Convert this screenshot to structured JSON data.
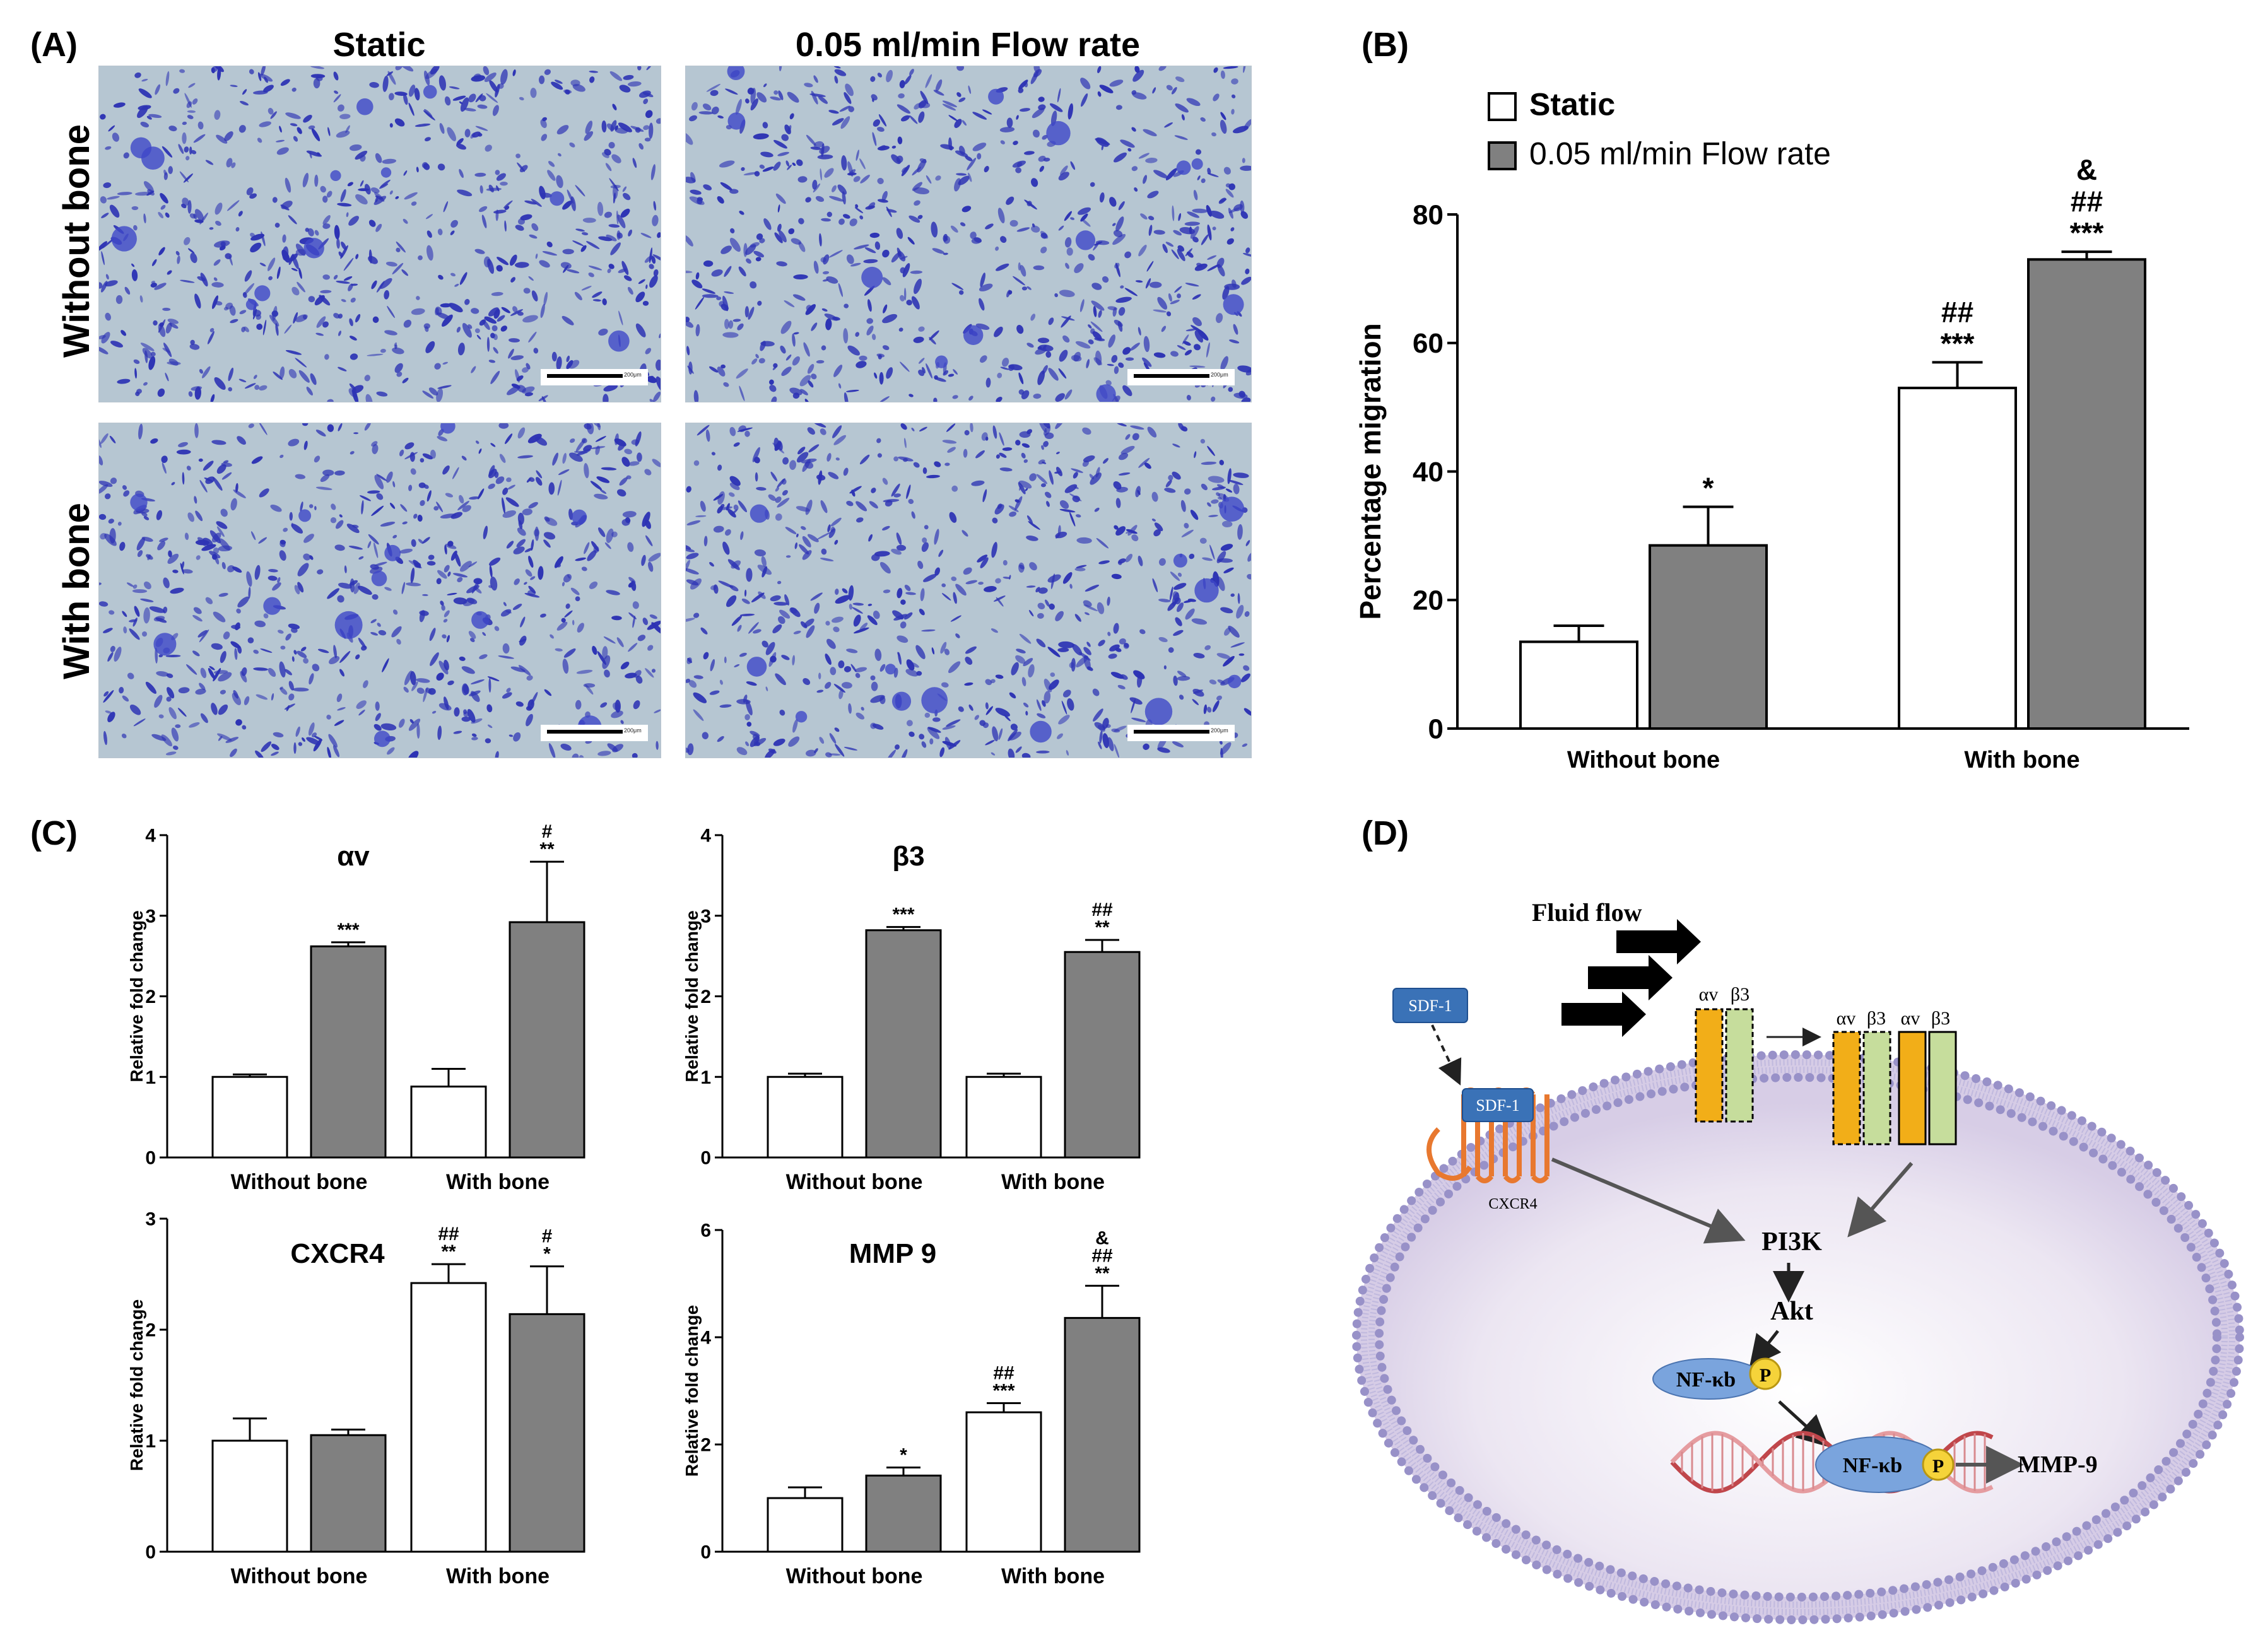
{
  "panelA": {
    "letter": "(A)",
    "col_static": "Static",
    "col_flow": "0.05 ml/min  Flow rate",
    "row_without": "Without bone",
    "row_with": "With bone",
    "scalebar": "200μm",
    "stain_color": "#2d33b4",
    "background_color": "#b6c6d2"
  },
  "panelB": {
    "letter": "(B)"
  },
  "panelC": {
    "letter": "(C)"
  },
  "panelD": {
    "letter": "(D)",
    "fluid_flow": "Fluid flow",
    "sdf1": "SDF-1",
    "cxcr4": "CXCR4",
    "alpha_v": "αv",
    "beta_3": "β3",
    "pi3k": "PI3K",
    "akt": "Akt",
    "nfkb": "NF-κb",
    "p": "P",
    "mmp9": "MMP-9"
  },
  "chart_data": [
    {
      "id": "B",
      "type": "bar",
      "categories": [
        "Without bone",
        "With bone"
      ],
      "series": [
        {
          "name": "Static",
          "values": [
            13.5,
            53
          ],
          "errors": [
            2.5,
            4
          ],
          "annotations": [
            "",
            "##\n***"
          ]
        },
        {
          "name": "0.05 ml/min Flow rate",
          "values": [
            28.5,
            73
          ],
          "errors": [
            6,
            1.2
          ],
          "annotations": [
            "*",
            "&\n##\n***"
          ]
        }
      ],
      "ylabel": "Percentage migration",
      "ylim": [
        0,
        80
      ],
      "yticks": [
        0,
        20,
        40,
        60,
        80
      ],
      "legend": "top-left",
      "colors": [
        "#ffffff",
        "#808080"
      ]
    },
    {
      "id": "C-av",
      "type": "bar",
      "title": "αv",
      "categories": [
        "Without bone",
        "With bone"
      ],
      "series": [
        {
          "values": [
            1.0,
            0.88
          ],
          "errors": [
            0.03,
            0.22
          ],
          "annotations": [
            "",
            ""
          ]
        },
        {
          "values": [
            2.62,
            2.92
          ],
          "errors": [
            0.05,
            0.75
          ],
          "annotations": [
            "***",
            "#\n**"
          ]
        }
      ],
      "ylabel": "Relative fold change",
      "ylim": [
        0,
        4
      ],
      "yticks": [
        0,
        1,
        2,
        3,
        4
      ]
    },
    {
      "id": "C-b3",
      "type": "bar",
      "title": "β3",
      "categories": [
        "Without bone",
        "With bone"
      ],
      "series": [
        {
          "values": [
            1.0,
            1.0
          ],
          "errors": [
            0.04,
            0.04
          ],
          "annotations": [
            "",
            ""
          ]
        },
        {
          "values": [
            2.82,
            2.55
          ],
          "errors": [
            0.04,
            0.15
          ],
          "annotations": [
            "***",
            "##\n**"
          ]
        }
      ],
      "ylabel": "Relative fold change",
      "ylim": [
        0,
        4
      ],
      "yticks": [
        0,
        1,
        2,
        3,
        4
      ]
    },
    {
      "id": "C-cxcr4",
      "type": "bar",
      "title": "CXCR4",
      "categories": [
        "Without bone",
        "With bone"
      ],
      "series": [
        {
          "values": [
            1.0,
            2.42
          ],
          "errors": [
            0.2,
            0.17
          ],
          "annotations": [
            "",
            "##\n**"
          ]
        },
        {
          "values": [
            1.05,
            2.14
          ],
          "errors": [
            0.05,
            0.43
          ],
          "annotations": [
            "",
            "#\n*"
          ]
        }
      ],
      "ylabel": "Relative fold change",
      "ylim": [
        0,
        3
      ],
      "yticks": [
        0,
        1,
        2,
        3
      ]
    },
    {
      "id": "C-mmp9",
      "type": "bar",
      "title": "MMP 9",
      "categories": [
        "Without bone",
        "With bone"
      ],
      "series": [
        {
          "values": [
            1.0,
            2.6
          ],
          "errors": [
            0.2,
            0.17
          ],
          "annotations": [
            "",
            "##\n***"
          ]
        },
        {
          "values": [
            1.42,
            4.36
          ],
          "errors": [
            0.15,
            0.6
          ],
          "annotations": [
            "*",
            "&\n##\n**"
          ]
        }
      ],
      "ylabel": "Relative fold change",
      "ylim": [
        0,
        6
      ],
      "yticks": [
        0,
        2,
        4,
        6
      ]
    }
  ]
}
